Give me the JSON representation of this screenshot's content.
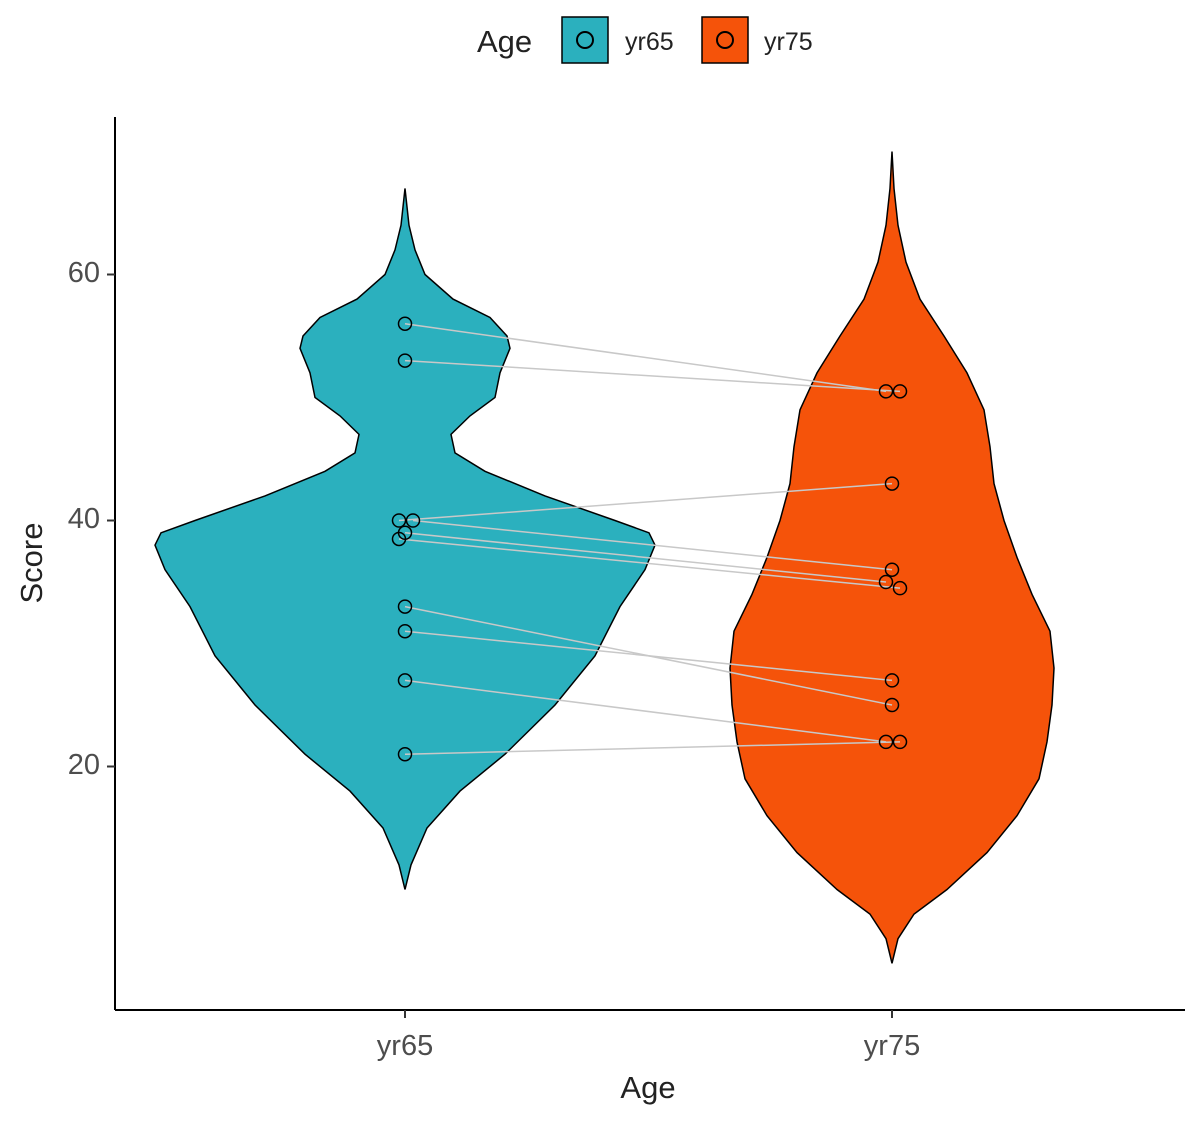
{
  "chart_data": {
    "type": "violin",
    "title": "",
    "xlabel": "Age",
    "ylabel": "Score",
    "categories": [
      "yr65",
      "yr75"
    ],
    "yticks": [
      20,
      40,
      60
    ],
    "ylim": [
      0,
      72
    ],
    "legend": {
      "title": "Age",
      "position": "top",
      "entries": [
        "yr65",
        "yr75"
      ]
    },
    "colors": {
      "yr65": "#2bb0be",
      "yr75": "#f5530a",
      "outline": "#000000",
      "pair_line": "#c8c8c8"
    },
    "violin_extent": {
      "yr65": [
        10,
        67
      ],
      "yr75": [
        4,
        70
      ]
    },
    "pairs": [
      {
        "yr65": 56,
        "yr75": 50.5
      },
      {
        "yr65": 53,
        "yr75": 50.5
      },
      {
        "yr65": 40,
        "yr75": 43
      },
      {
        "yr65": 40,
        "yr75": 36
      },
      {
        "yr65": 39,
        "yr75": 35
      },
      {
        "yr65": 38.5,
        "yr75": 34.5
      },
      {
        "yr65": 33,
        "yr75": 25
      },
      {
        "yr65": 31,
        "yr75": 27
      },
      {
        "yr65": 27,
        "yr75": 22
      },
      {
        "yr65": 21,
        "yr75": 22
      }
    ]
  }
}
